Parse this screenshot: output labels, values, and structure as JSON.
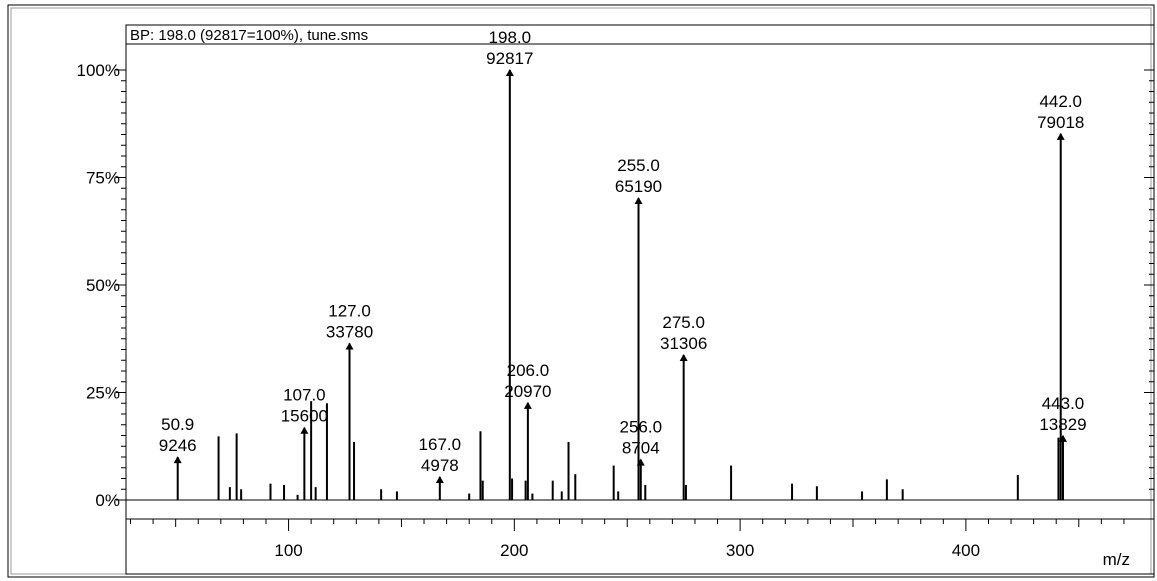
{
  "chart_data": {
    "type": "bar",
    "title": "BP: 198.0 (92817=100%), tune.sms",
    "xlabel": "m/z",
    "ylabel": "",
    "xlim": [
      28,
      478
    ],
    "ylim": [
      0,
      100
    ],
    "y_ticks": [
      "0%",
      "25%",
      "50%",
      "75%",
      "100%"
    ],
    "y_tick_values": [
      0,
      25,
      50,
      75,
      100
    ],
    "x_ticks": [
      "100",
      "200",
      "300",
      "400"
    ],
    "x_tick_values": [
      100,
      200,
      300,
      400
    ],
    "labeled_peaks": [
      {
        "mz": 50.9,
        "intensity": 9246,
        "mz_label": "50.9",
        "count_label": "9246"
      },
      {
        "mz": 107.0,
        "intensity": 15600,
        "mz_label": "107.0",
        "count_label": "15600"
      },
      {
        "mz": 127.0,
        "intensity": 33780,
        "mz_label": "127.0",
        "count_label": "33780"
      },
      {
        "mz": 167.0,
        "intensity": 4978,
        "mz_label": "167.0",
        "count_label": "4978"
      },
      {
        "mz": 198.0,
        "intensity": 92817,
        "mz_label": "198.0",
        "count_label": "92817"
      },
      {
        "mz": 206.0,
        "intensity": 20970,
        "mz_label": "206.0",
        "count_label": "20970"
      },
      {
        "mz": 255.0,
        "intensity": 65190,
        "mz_label": "255.0",
        "count_label": "65190"
      },
      {
        "mz": 256.0,
        "intensity": 8704,
        "mz_label": "256.0",
        "count_label": "8704"
      },
      {
        "mz": 275.0,
        "intensity": 31306,
        "mz_label": "275.0",
        "count_label": "31306"
      },
      {
        "mz": 442.0,
        "intensity": 79018,
        "mz_label": "442.0",
        "count_label": "79018"
      },
      {
        "mz": 443.0,
        "intensity": 13829,
        "mz_label": "443.0",
        "count_label": "13829"
      }
    ],
    "minor_peaks": [
      {
        "mz": 69,
        "pct": 14.8
      },
      {
        "mz": 74,
        "pct": 3.0
      },
      {
        "mz": 77,
        "pct": 15.5
      },
      {
        "mz": 79,
        "pct": 2.5
      },
      {
        "mz": 92,
        "pct": 3.8
      },
      {
        "mz": 98,
        "pct": 3.5
      },
      {
        "mz": 104,
        "pct": 1.2
      },
      {
        "mz": 110,
        "pct": 23.0
      },
      {
        "mz": 112,
        "pct": 3.0
      },
      {
        "mz": 117,
        "pct": 22.5
      },
      {
        "mz": 129,
        "pct": 13.5
      },
      {
        "mz": 141,
        "pct": 2.5
      },
      {
        "mz": 148,
        "pct": 2.0
      },
      {
        "mz": 180,
        "pct": 1.5
      },
      {
        "mz": 185,
        "pct": 16.0
      },
      {
        "mz": 186,
        "pct": 4.5
      },
      {
        "mz": 199,
        "pct": 5.0
      },
      {
        "mz": 205,
        "pct": 4.5
      },
      {
        "mz": 208,
        "pct": 1.5
      },
      {
        "mz": 217,
        "pct": 4.5
      },
      {
        "mz": 221,
        "pct": 2.0
      },
      {
        "mz": 224,
        "pct": 13.5
      },
      {
        "mz": 227,
        "pct": 6.0
      },
      {
        "mz": 244,
        "pct": 8.0
      },
      {
        "mz": 246,
        "pct": 2.0
      },
      {
        "mz": 258,
        "pct": 3.5
      },
      {
        "mz": 276,
        "pct": 3.5
      },
      {
        "mz": 296,
        "pct": 8.0
      },
      {
        "mz": 323,
        "pct": 3.8
      },
      {
        "mz": 334,
        "pct": 3.2
      },
      {
        "mz": 354,
        "pct": 2.0
      },
      {
        "mz": 365,
        "pct": 4.8
      },
      {
        "mz": 372,
        "pct": 2.5
      },
      {
        "mz": 423,
        "pct": 5.8
      },
      {
        "mz": 441,
        "pct": 14.5
      }
    ],
    "grid": false,
    "legend": "none"
  }
}
